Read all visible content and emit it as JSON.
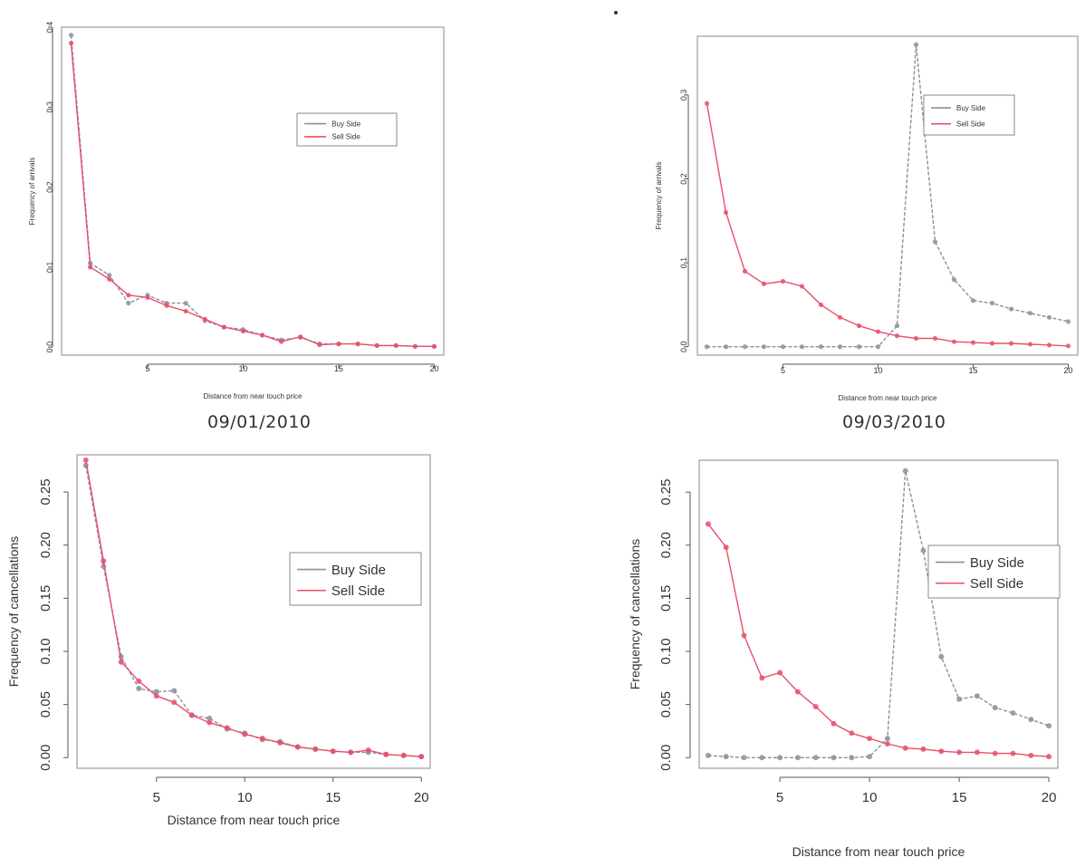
{
  "captions": {
    "top_left_date": "09/01/2010",
    "top_right_date": "09/03/2010"
  },
  "colors": {
    "buy": "#8c8fa0",
    "sell": "#e8506a",
    "axis": "#555555",
    "box": "#888888"
  },
  "chart_data": [
    {
      "type": "line",
      "panel": "top-left",
      "title": "",
      "xlabel": "Distance from near touch price",
      "ylabel": "Frequency of arrivals",
      "xlim": [
        0.5,
        20.5
      ],
      "ylim": [
        -0.01,
        0.4
      ],
      "xticks": [
        5,
        10,
        15,
        20
      ],
      "yticks": [
        0.0,
        0.1,
        0.2,
        0.3,
        0.4
      ],
      "ytick_labels": [
        "0.0",
        "0.1",
        "0.2",
        "0.3",
        "0.4"
      ],
      "legend_position": "top-right",
      "x": [
        1,
        2,
        3,
        4,
        5,
        6,
        7,
        8,
        9,
        10,
        11,
        12,
        13,
        14,
        15,
        16,
        17,
        18,
        19,
        20
      ],
      "series": [
        {
          "name": "Buy Side",
          "values": [
            0.39,
            0.105,
            0.09,
            0.055,
            0.065,
            0.055,
            0.055,
            0.033,
            0.025,
            0.022,
            0.015,
            0.009,
            0.012,
            0.004,
            0.004,
            0.004,
            0.002,
            0.002,
            0.001,
            0.001
          ]
        },
        {
          "name": "Sell Side",
          "values": [
            0.38,
            0.1,
            0.085,
            0.065,
            0.062,
            0.052,
            0.045,
            0.035,
            0.025,
            0.02,
            0.015,
            0.007,
            0.013,
            0.003,
            0.004,
            0.004,
            0.002,
            0.002,
            0.001,
            0.001
          ]
        }
      ]
    },
    {
      "type": "line",
      "panel": "top-right",
      "title": "",
      "xlabel": "Distance from near touch price",
      "ylabel": "Frequency of arrivals",
      "xlim": [
        0.5,
        20.5
      ],
      "ylim": [
        -0.01,
        0.37
      ],
      "xticks": [
        5,
        10,
        15,
        20
      ],
      "yticks": [
        0.0,
        0.1,
        0.2,
        0.3
      ],
      "ytick_labels": [
        "0.0",
        "0.1",
        "0.2",
        "0.3"
      ],
      "legend_position": "top-right",
      "x": [
        1,
        2,
        3,
        4,
        5,
        6,
        7,
        8,
        9,
        10,
        11,
        12,
        13,
        14,
        15,
        16,
        17,
        18,
        19,
        20
      ],
      "series": [
        {
          "name": "Buy Side",
          "values": [
            0.0,
            0.0,
            0.0,
            0.0,
            0.0,
            0.0,
            0.0,
            0.0,
            0.0,
            0.0,
            0.025,
            0.36,
            0.125,
            0.08,
            0.055,
            0.052,
            0.045,
            0.04,
            0.035,
            0.03
          ]
        },
        {
          "name": "Sell Side",
          "values": [
            0.29,
            0.16,
            0.09,
            0.075,
            0.078,
            0.072,
            0.05,
            0.035,
            0.025,
            0.018,
            0.013,
            0.01,
            0.01,
            0.006,
            0.005,
            0.004,
            0.004,
            0.003,
            0.002,
            0.001
          ]
        }
      ]
    },
    {
      "type": "line",
      "panel": "bottom-left",
      "title": "",
      "xlabel": "Distance from near touch price",
      "ylabel": "Frequency of cancellations",
      "xlim": [
        0.5,
        20.5
      ],
      "ylim": [
        -0.01,
        0.285
      ],
      "xticks": [
        5,
        10,
        15,
        20
      ],
      "yticks": [
        0.0,
        0.05,
        0.1,
        0.15,
        0.2,
        0.25
      ],
      "ytick_labels": [
        "0.00",
        "0.05",
        "0.10",
        "0.15",
        "0.20",
        "0.25"
      ],
      "legend_position": "top-right",
      "x": [
        1,
        2,
        3,
        4,
        5,
        6,
        7,
        8,
        9,
        10,
        11,
        12,
        13,
        14,
        15,
        16,
        17,
        18,
        19,
        20
      ],
      "series": [
        {
          "name": "Buy Side",
          "values": [
            0.275,
            0.18,
            0.095,
            0.065,
            0.062,
            0.063,
            0.04,
            0.037,
            0.027,
            0.023,
            0.017,
            0.015,
            0.01,
            0.008,
            0.006,
            0.005,
            0.005,
            0.003,
            0.002,
            0.001
          ]
        },
        {
          "name": "Sell Side",
          "values": [
            0.28,
            0.185,
            0.09,
            0.072,
            0.058,
            0.052,
            0.04,
            0.033,
            0.028,
            0.022,
            0.018,
            0.014,
            0.01,
            0.008,
            0.006,
            0.005,
            0.007,
            0.003,
            0.002,
            0.001
          ]
        }
      ]
    },
    {
      "type": "line",
      "panel": "bottom-right",
      "title": "",
      "xlabel": "Distance from near touch price",
      "ylabel": "Frequency of cancellations",
      "xlim": [
        0.5,
        20.5
      ],
      "ylim": [
        -0.01,
        0.28
      ],
      "xticks": [
        5,
        10,
        15,
        20
      ],
      "yticks": [
        0.0,
        0.05,
        0.1,
        0.15,
        0.2,
        0.25
      ],
      "ytick_labels": [
        "0.00",
        "0.05",
        "0.10",
        "0.15",
        "0.20",
        "0.25"
      ],
      "legend_position": "top-right",
      "x": [
        1,
        2,
        3,
        4,
        5,
        6,
        7,
        8,
        9,
        10,
        11,
        12,
        13,
        14,
        15,
        16,
        17,
        18,
        19,
        20
      ],
      "series": [
        {
          "name": "Buy Side",
          "values": [
            0.002,
            0.001,
            0.0,
            0.0,
            0.0,
            0.0,
            0.0,
            0.0,
            0.0,
            0.001,
            0.018,
            0.27,
            0.195,
            0.095,
            0.055,
            0.058,
            0.047,
            0.042,
            0.036,
            0.03
          ]
        },
        {
          "name": "Sell Side",
          "values": [
            0.22,
            0.198,
            0.115,
            0.075,
            0.08,
            0.062,
            0.048,
            0.032,
            0.023,
            0.018,
            0.013,
            0.009,
            0.008,
            0.006,
            0.005,
            0.005,
            0.004,
            0.004,
            0.002,
            0.001
          ]
        }
      ]
    }
  ]
}
